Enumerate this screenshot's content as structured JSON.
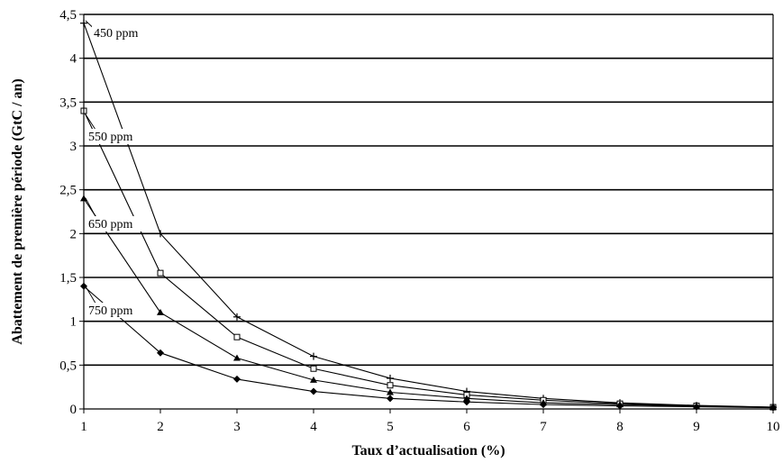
{
  "chart_data": {
    "type": "line",
    "xlabel": "Taux d’actualisation (%)",
    "ylabel": "Abattement de première période (GtC / an)",
    "xlim": [
      1,
      10
    ],
    "ylim": [
      0,
      4.5
    ],
    "x_ticks": [
      "1",
      "2",
      "3",
      "4",
      "5",
      "6",
      "7",
      "8",
      "9",
      "10"
    ],
    "y_ticks": [
      "0",
      "0,5",
      "1",
      "1,5",
      "2",
      "2,5",
      "3",
      "3,5",
      "4",
      "4,5"
    ],
    "grid": "horizontal",
    "x": [
      1,
      2,
      3,
      4,
      5,
      6,
      7,
      8,
      9,
      10
    ],
    "series": [
      {
        "name": "450 ppm",
        "marker": "plus",
        "values": [
          4.4,
          2.0,
          1.05,
          0.6,
          0.35,
          0.2,
          0.12,
          0.07,
          0.04,
          0.02
        ]
      },
      {
        "name": "550 ppm",
        "marker": "square",
        "values": [
          3.4,
          1.55,
          0.82,
          0.46,
          0.27,
          0.16,
          0.1,
          0.06,
          0.035,
          0.02
        ]
      },
      {
        "name": "650 ppm",
        "marker": "triangle",
        "values": [
          2.4,
          1.1,
          0.58,
          0.33,
          0.19,
          0.12,
          0.07,
          0.05,
          0.03,
          0.02
        ]
      },
      {
        "name": "750 ppm",
        "marker": "diamond",
        "values": [
          1.4,
          0.64,
          0.34,
          0.2,
          0.12,
          0.08,
          0.05,
          0.035,
          0.025,
          0.015
        ]
      }
    ]
  }
}
